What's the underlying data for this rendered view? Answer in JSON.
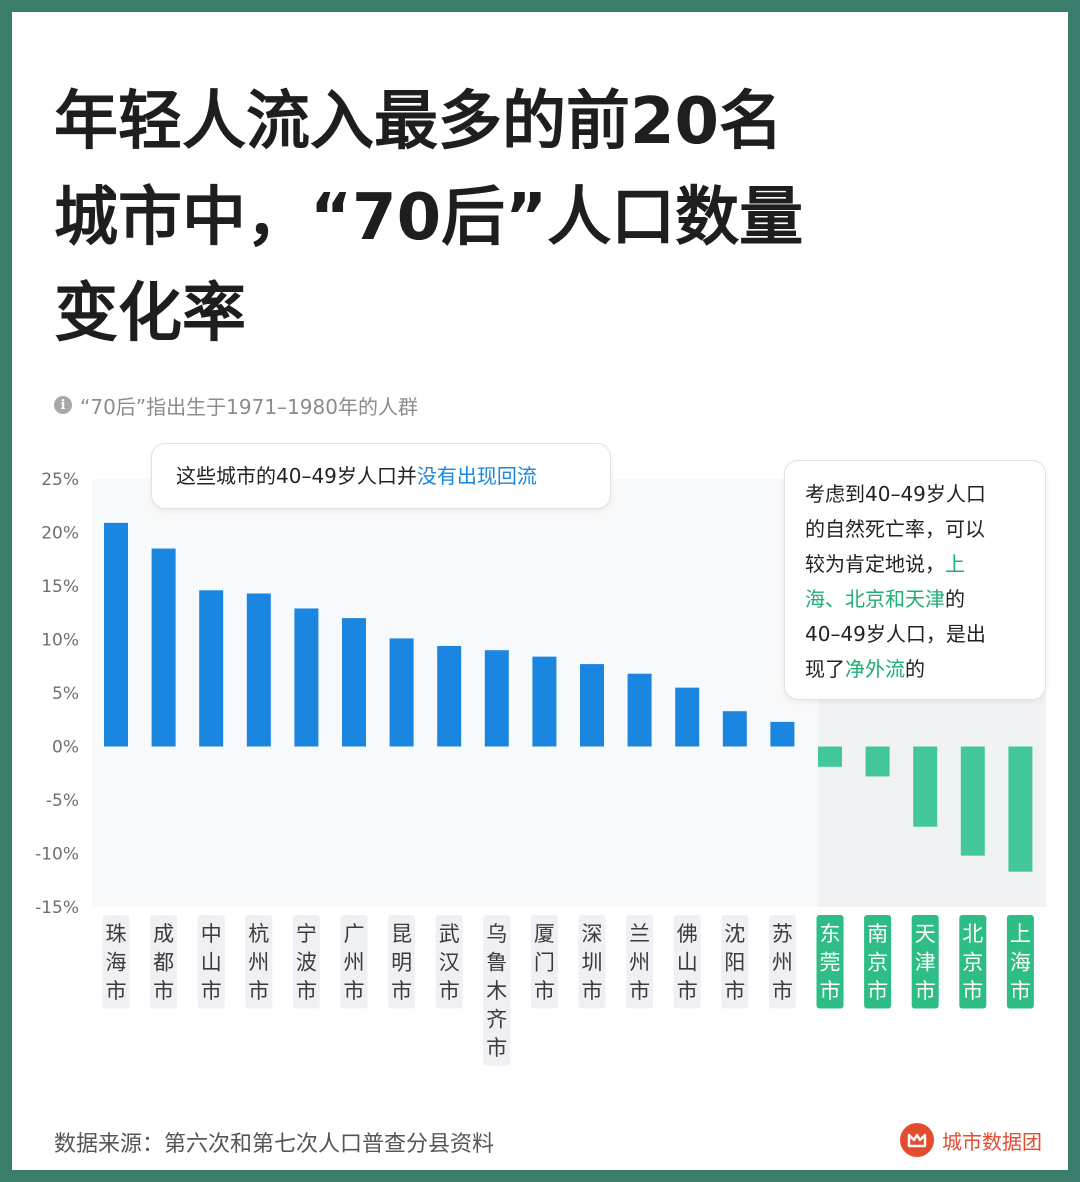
{
  "title_lines": [
    "年轻人流入最多的前20名",
    "城市中，“70后”人口数量",
    "变化率"
  ],
  "note": "“70后”指出生于1971–1980年的人群",
  "callout_left": {
    "before": "这些城市的40–49岁人口并",
    "highlight": "没有出现回流"
  },
  "callout_right": {
    "line1": "考虑到40–49岁人口",
    "line2": "的自然死亡率，可以",
    "line3_plain": "较为肯定地说，",
    "line3_hl": "上",
    "line4_hl": "海、北京和天津",
    "line4_plain": "的",
    "line5": "40–49岁人口，是出",
    "line6_plain1": "现了",
    "line6_hl": "净外流",
    "line6_plain2": "的"
  },
  "source": "数据来源：第六次和第七次人口普查分县资料",
  "brand": "城市数据团",
  "colors": {
    "positive": "#1a86e0",
    "negative": "#43c79a",
    "label_negative_bg": "#2ebd84",
    "label_positive_bg": "#eef0f3",
    "highlight_blue": "#1a86e0",
    "highlight_green": "#1fae74"
  },
  "chart_data": {
    "type": "bar",
    "categories": [
      "珠海市",
      "成都市",
      "中山市",
      "杭州市",
      "宁波市",
      "广州市",
      "昆明市",
      "武汉市",
      "乌鲁木齐市",
      "厦门市",
      "深圳市",
      "兰州市",
      "佛山市",
      "沈阳市",
      "苏州市",
      "东莞市",
      "南京市",
      "天津市",
      "北京市",
      "上海市"
    ],
    "values": [
      20.9,
      18.5,
      14.6,
      14.3,
      12.9,
      12.0,
      10.1,
      9.4,
      9.0,
      8.4,
      7.7,
      6.8,
      5.5,
      3.3,
      2.3,
      -1.9,
      -2.8,
      -7.5,
      -10.2,
      -11.7
    ],
    "y_ticks": [
      "25%",
      "20%",
      "15%",
      "10%",
      "5%",
      "0%",
      "-5%",
      "-10%",
      "-15%"
    ],
    "y_tick_values": [
      25,
      20,
      15,
      10,
      5,
      0,
      -5,
      -10,
      -15
    ],
    "ylim": [
      -15,
      25
    ],
    "grid": false
  }
}
